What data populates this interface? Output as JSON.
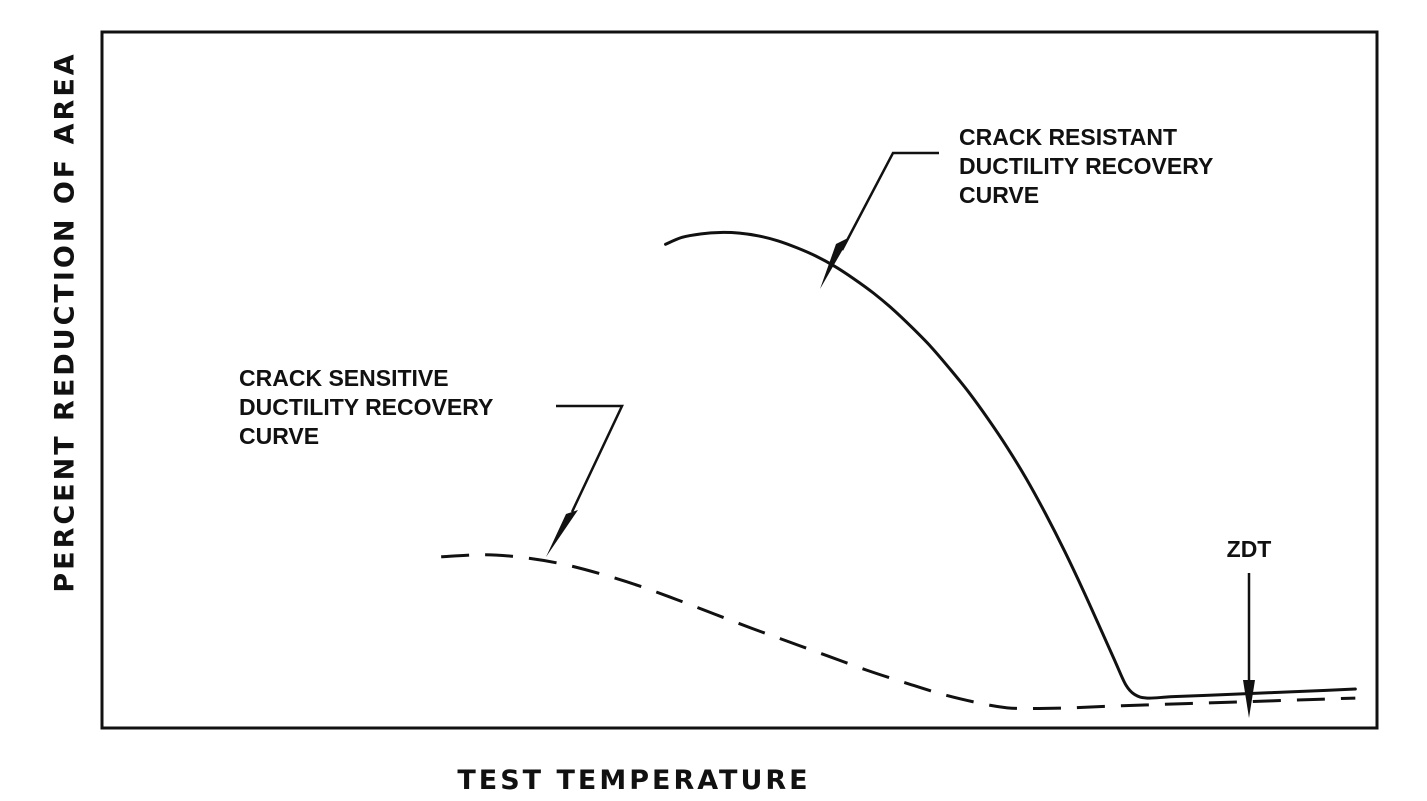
{
  "chart_data": {
    "type": "line",
    "xlabel": "TEST TEMPERATURE",
    "ylabel": "PERCENT REDUCTION OF AREA",
    "grid": false,
    "legend": "none",
    "xlim": [
      0,
      100
    ],
    "ylim": [
      0,
      100
    ],
    "series": [
      {
        "name": "CRACK RESISTANT DUCTILITY RECOVERY CURVE",
        "style": "solid",
        "color": "#111111",
        "points": [
          [
            44.2,
            69.5
          ],
          [
            45.5,
            70.5
          ],
          [
            47.0,
            71.0
          ],
          [
            48.5,
            71.2
          ],
          [
            50.0,
            71.1
          ],
          [
            51.5,
            70.7
          ],
          [
            53.0,
            70.0
          ],
          [
            54.5,
            69.0
          ],
          [
            56.0,
            67.8
          ],
          [
            57.5,
            66.3
          ],
          [
            59.0,
            64.5
          ],
          [
            60.5,
            62.5
          ],
          [
            62.0,
            60.2
          ],
          [
            63.5,
            57.6
          ],
          [
            65.0,
            54.8
          ],
          [
            66.5,
            51.6
          ],
          [
            68.0,
            48.2
          ],
          [
            69.5,
            44.4
          ],
          [
            71.0,
            40.3
          ],
          [
            72.5,
            35.8
          ],
          [
            74.0,
            30.8
          ],
          [
            75.5,
            25.4
          ],
          [
            77.0,
            19.6
          ],
          [
            78.5,
            13.5
          ],
          [
            79.5,
            9.4
          ],
          [
            80.3,
            6.2
          ],
          [
            81.0,
            4.8
          ],
          [
            82.0,
            4.3
          ],
          [
            84.0,
            4.5
          ],
          [
            88.0,
            4.8
          ],
          [
            92.0,
            5.1
          ],
          [
            96.0,
            5.4
          ],
          [
            98.3,
            5.6
          ]
        ]
      },
      {
        "name": "CRACK SENSITIVE DUCTILITY RECOVERY CURVE",
        "style": "dashed",
        "color": "#111111",
        "points": [
          [
            26.6,
            24.6
          ],
          [
            30.0,
            24.9
          ],
          [
            33.0,
            24.5
          ],
          [
            36.0,
            23.6
          ],
          [
            39.0,
            22.2
          ],
          [
            42.0,
            20.5
          ],
          [
            45.0,
            18.5
          ],
          [
            48.0,
            16.4
          ],
          [
            51.0,
            14.3
          ],
          [
            54.0,
            12.3
          ],
          [
            57.0,
            10.3
          ],
          [
            60.0,
            8.3
          ],
          [
            63.0,
            6.5
          ],
          [
            66.0,
            4.8
          ],
          [
            69.0,
            3.5
          ],
          [
            71.0,
            2.9
          ],
          [
            73.0,
            2.8
          ],
          [
            76.0,
            2.9
          ],
          [
            80.0,
            3.2
          ],
          [
            85.0,
            3.5
          ],
          [
            90.0,
            3.8
          ],
          [
            95.0,
            4.1
          ],
          [
            98.3,
            4.3
          ]
        ]
      }
    ],
    "annotations": [
      {
        "id": "crack-resistant",
        "lines": [
          "CRACK RESISTANT",
          "DUCTILITY RECOVERY",
          "CURVE"
        ]
      },
      {
        "id": "crack-sensitive",
        "lines": [
          "CRACK SENSITIVE",
          "DUCTILITY RECOVERY",
          "CURVE"
        ]
      },
      {
        "id": "zdt",
        "lines": [
          "ZDT"
        ],
        "x": 98.3
      }
    ]
  }
}
